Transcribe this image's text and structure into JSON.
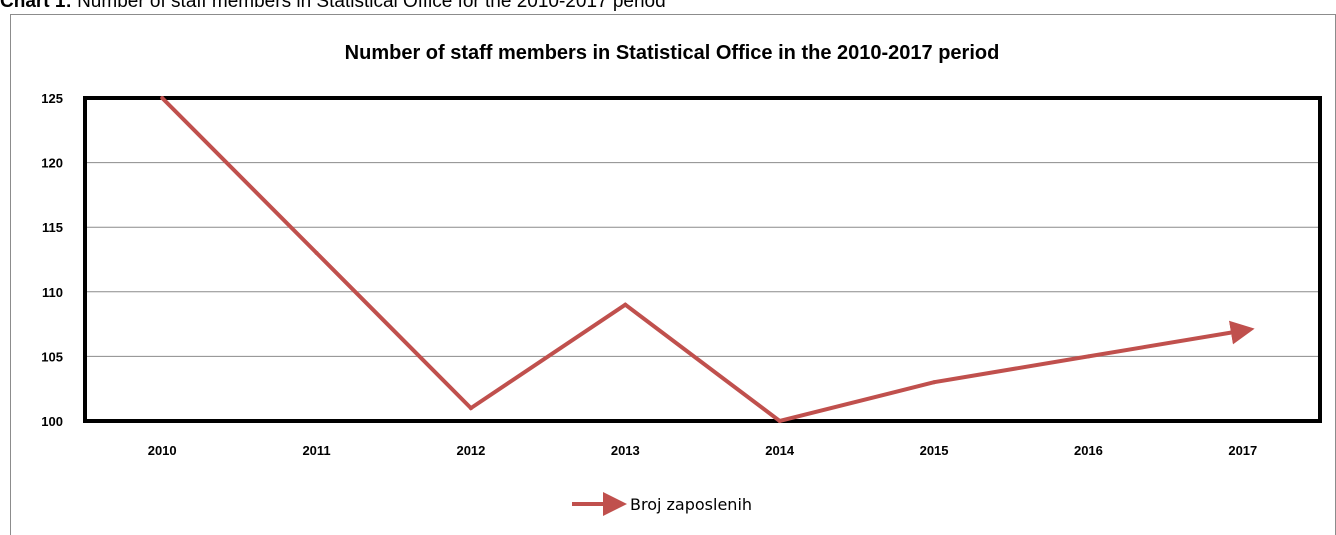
{
  "caption": {
    "label": "Chart 1:",
    "text": " Number of staff members in Statistical Office for the 2010-2017 period"
  },
  "chart_data": {
    "type": "line",
    "title": "Number of staff members in Statistical Office in the 2010-2017 period",
    "xlabel": "",
    "ylabel": "",
    "categories": [
      "2010",
      "2011",
      "2012",
      "2013",
      "2014",
      "2015",
      "2016",
      "2017"
    ],
    "series": [
      {
        "name": "Broj zaposlenih",
        "values": [
          125,
          113,
          101,
          109,
          100,
          103,
          105,
          107
        ],
        "color": "#c0504d"
      }
    ],
    "ylim": [
      100,
      125
    ],
    "yticks": [
      "100",
      "105",
      "110",
      "115",
      "120",
      "125"
    ],
    "grid": true,
    "legend": "bottom"
  }
}
